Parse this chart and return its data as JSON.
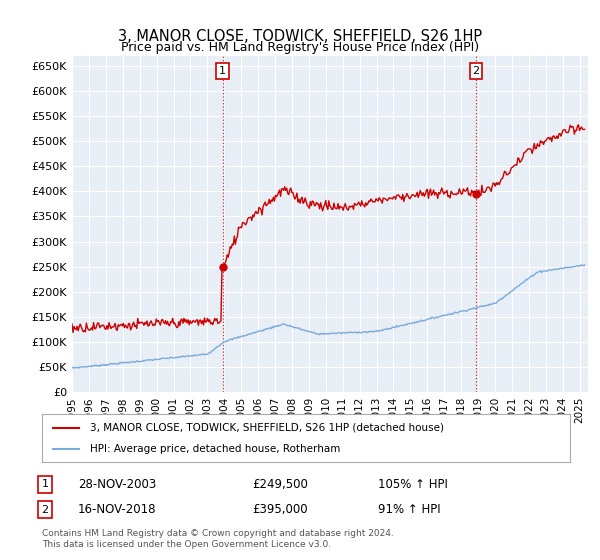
{
  "title": "3, MANOR CLOSE, TODWICK, SHEFFIELD, S26 1HP",
  "subtitle": "Price paid vs. HM Land Registry's House Price Index (HPI)",
  "legend_line1": "3, MANOR CLOSE, TODWICK, SHEFFIELD, S26 1HP (detached house)",
  "legend_line2": "HPI: Average price, detached house, Rotherham",
  "annotation1_date": "28-NOV-2003",
  "annotation1_price": "£249,500",
  "annotation1_hpi": "105% ↑ HPI",
  "annotation2_date": "16-NOV-2018",
  "annotation2_price": "£395,000",
  "annotation2_hpi": "91% ↑ HPI",
  "footnote1": "Contains HM Land Registry data © Crown copyright and database right 2024.",
  "footnote2": "This data is licensed under the Open Government Licence v3.0.",
  "sale1_year": 2003.91,
  "sale1_price": 249500,
  "sale2_year": 2018.88,
  "sale2_price": 395000,
  "red_line_color": "#cc0000",
  "blue_line_color": "#7aaadd",
  "background_color": "#ffffff",
  "plot_bg_color": "#e8eef5",
  "grid_color": "#ffffff",
  "ylim_min": 0,
  "ylim_max": 670000,
  "xlim_min": 1995,
  "xlim_max": 2025.5,
  "yticks": [
    0,
    50000,
    100000,
    150000,
    200000,
    250000,
    300000,
    350000,
    400000,
    450000,
    500000,
    550000,
    600000,
    650000
  ],
  "xticks": [
    1995,
    1996,
    1997,
    1998,
    1999,
    2000,
    2001,
    2002,
    2003,
    2004,
    2005,
    2006,
    2007,
    2008,
    2009,
    2010,
    2011,
    2012,
    2013,
    2014,
    2015,
    2016,
    2017,
    2018,
    2019,
    2020,
    2021,
    2022,
    2023,
    2024,
    2025
  ]
}
